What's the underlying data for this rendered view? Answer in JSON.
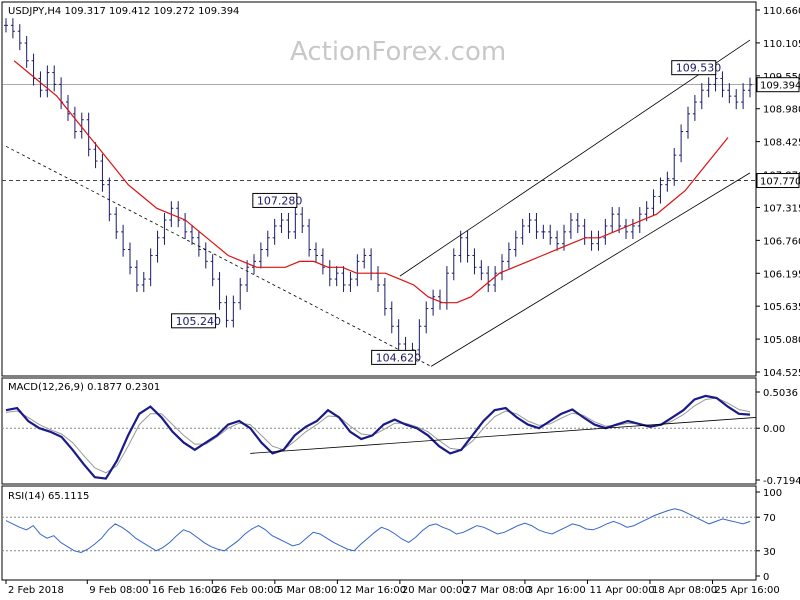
{
  "watermark": "ActionForex.com",
  "colors": {
    "bars": "#1a1a66",
    "ma": "#dd1111",
    "macd_line": "#1a1a88",
    "signal_line": "#999999",
    "rsi_line": "#3366cc",
    "trend": "#000000",
    "grid": "#888888"
  },
  "chart_data": [
    {
      "type": "bar",
      "title": "USDJPY,H4  109.317 109.412 109.272 109.394",
      "ylim": [
        104.525,
        110.66
      ],
      "y_ticks": [
        "110.660",
        "110.105",
        "109.550",
        "108.980",
        "108.425",
        "107.870",
        "107.315",
        "106.760",
        "106.195",
        "105.635",
        "105.080",
        "104.525"
      ],
      "last_price": "109.394",
      "horizontal_level": "107.770",
      "level_labels": [
        {
          "text": "109.530",
          "x": 110,
          "y": 109.53
        },
        {
          "text": "107.280",
          "x": 43,
          "y": 107.28
        },
        {
          "text": "105.240",
          "x": 30,
          "y": 105.24
        },
        {
          "text": "104.620",
          "x": 62,
          "y": 104.62
        }
      ],
      "x_labels": [
        {
          "text": "2 Feb 2018",
          "x": 0
        },
        {
          "text": "9 Feb 08:00",
          "x": 13
        },
        {
          "text": "16 Feb 16:00",
          "x": 23
        },
        {
          "text": "26 Feb 00:00",
          "x": 33
        },
        {
          "text": "5 Mar 08:00",
          "x": 43
        },
        {
          "text": "12 Mar 16:00",
          "x": 53
        },
        {
          "text": "20 Mar 00:00",
          "x": 63
        },
        {
          "text": "27 Mar 08:00",
          "x": 73
        },
        {
          "text": "3 Apr 16:00",
          "x": 83
        },
        {
          "text": "11 Apr 00:00",
          "x": 93
        },
        {
          "text": "18 Apr 08:00",
          "x": 103
        },
        {
          "text": "25 Apr 16:00",
          "x": 113
        }
      ],
      "x_count": 120,
      "closes": [
        110.4,
        110.3,
        110.1,
        109.8,
        109.5,
        109.3,
        109.6,
        109.4,
        109.1,
        108.9,
        108.6,
        108.8,
        108.3,
        108.1,
        107.7,
        107.2,
        106.9,
        106.6,
        106.3,
        106.0,
        106.1,
        106.5,
        106.8,
        107.1,
        107.3,
        107.1,
        106.9,
        106.8,
        106.6,
        106.4,
        106.1,
        105.7,
        105.4,
        105.7,
        106.0,
        106.3,
        106.4,
        106.6,
        106.8,
        107.0,
        107.1,
        106.9,
        107.2,
        107.0,
        106.6,
        106.5,
        106.3,
        106.1,
        106.2,
        106.0,
        106.1,
        106.4,
        106.5,
        106.2,
        106.0,
        105.6,
        105.3,
        105.0,
        104.8,
        104.9,
        105.3,
        105.6,
        105.8,
        105.7,
        106.2,
        106.5,
        106.8,
        106.5,
        106.3,
        106.2,
        106.0,
        106.2,
        106.4,
        106.6,
        106.8,
        107.0,
        107.1,
        106.9,
        106.9,
        106.8,
        106.7,
        106.9,
        107.1,
        107.0,
        106.8,
        106.7,
        106.8,
        107.0,
        107.2,
        107.0,
        106.9,
        107.0,
        107.2,
        107.3,
        107.5,
        107.7,
        107.8,
        108.2,
        108.6,
        108.9,
        109.1,
        109.3,
        109.4,
        109.5,
        109.3,
        109.2,
        109.1,
        109.3,
        109.394
      ],
      "ma_values": [
        109.8,
        109.6,
        109.4,
        109.2,
        108.9,
        108.6,
        108.3,
        108.0,
        107.7,
        107.5,
        107.3,
        107.2,
        107.1,
        106.9,
        106.7,
        106.5,
        106.4,
        106.3,
        106.3,
        106.3,
        106.4,
        106.4,
        106.3,
        106.3,
        106.2,
        106.2,
        106.2,
        106.1,
        106.0,
        105.8,
        105.7,
        105.7,
        105.8,
        106.0,
        106.2,
        106.3,
        106.4,
        106.5,
        106.6,
        106.7,
        106.8,
        106.8,
        106.9,
        107.0,
        107.1,
        107.2,
        107.4,
        107.6,
        107.9,
        108.2,
        108.5
      ]
    },
    {
      "type": "line",
      "title": "MACD(12,26,9) 0.1877 0.2301",
      "y_ticks": [
        "0.5036",
        "0.00",
        "-0.7194"
      ],
      "ylim": [
        -0.7194,
        0.5036
      ],
      "macd": [
        0.25,
        0.28,
        0.1,
        0.0,
        -0.05,
        -0.12,
        -0.3,
        -0.5,
        -0.68,
        -0.7,
        -0.45,
        -0.1,
        0.2,
        0.3,
        0.15,
        -0.05,
        -0.2,
        -0.3,
        -0.2,
        -0.1,
        0.05,
        0.1,
        0.0,
        -0.2,
        -0.35,
        -0.3,
        -0.1,
        0.02,
        0.1,
        0.25,
        0.15,
        -0.05,
        -0.15,
        -0.1,
        0.05,
        0.12,
        0.05,
        0.0,
        -0.1,
        -0.25,
        -0.35,
        -0.3,
        -0.1,
        0.1,
        0.25,
        0.28,
        0.15,
        0.05,
        0.0,
        0.1,
        0.2,
        0.26,
        0.15,
        0.05,
        0.0,
        0.05,
        0.1,
        0.06,
        0.02,
        0.05,
        0.15,
        0.25,
        0.4,
        0.45,
        0.42,
        0.3,
        0.2,
        0.19
      ],
      "signal": [
        0.22,
        0.24,
        0.15,
        0.05,
        -0.02,
        -0.08,
        -0.2,
        -0.38,
        -0.55,
        -0.62,
        -0.52,
        -0.25,
        0.05,
        0.2,
        0.2,
        0.05,
        -0.1,
        -0.22,
        -0.22,
        -0.12,
        0.0,
        0.07,
        0.05,
        -0.1,
        -0.25,
        -0.3,
        -0.18,
        -0.05,
        0.05,
        0.17,
        0.16,
        0.03,
        -0.08,
        -0.1,
        -0.02,
        0.07,
        0.07,
        0.02,
        -0.05,
        -0.17,
        -0.28,
        -0.3,
        -0.18,
        0.0,
        0.16,
        0.24,
        0.2,
        0.1,
        0.04,
        0.06,
        0.14,
        0.21,
        0.18,
        0.09,
        0.03,
        0.04,
        0.07,
        0.06,
        0.04,
        0.04,
        0.1,
        0.19,
        0.31,
        0.4,
        0.42,
        0.35,
        0.26,
        0.23
      ]
    },
    {
      "type": "line",
      "title": "RSI(14) 65.1115",
      "y_ticks": [
        "100",
        "70",
        "30",
        "0"
      ],
      "ylim": [
        0,
        100
      ],
      "values": [
        66,
        62,
        58,
        55,
        60,
        50,
        45,
        48,
        40,
        35,
        30,
        28,
        32,
        38,
        45,
        55,
        62,
        58,
        52,
        45,
        40,
        35,
        30,
        34,
        40,
        48,
        55,
        52,
        46,
        40,
        35,
        32,
        30,
        36,
        42,
        50,
        56,
        60,
        55,
        48,
        44,
        40,
        36,
        38,
        45,
        52,
        50,
        45,
        40,
        36,
        32,
        30,
        38,
        45,
        52,
        58,
        55,
        50,
        44,
        40,
        46,
        54,
        60,
        62,
        58,
        55,
        50,
        52,
        56,
        60,
        58,
        54,
        50,
        52,
        56,
        60,
        63,
        60,
        55,
        52,
        50,
        54,
        58,
        62,
        60,
        56,
        55,
        58,
        62,
        65,
        62,
        58,
        60,
        64,
        68,
        72,
        75,
        78,
        80,
        78,
        74,
        70,
        66,
        62,
        65,
        68,
        66,
        64,
        62,
        65
      ]
    }
  ]
}
